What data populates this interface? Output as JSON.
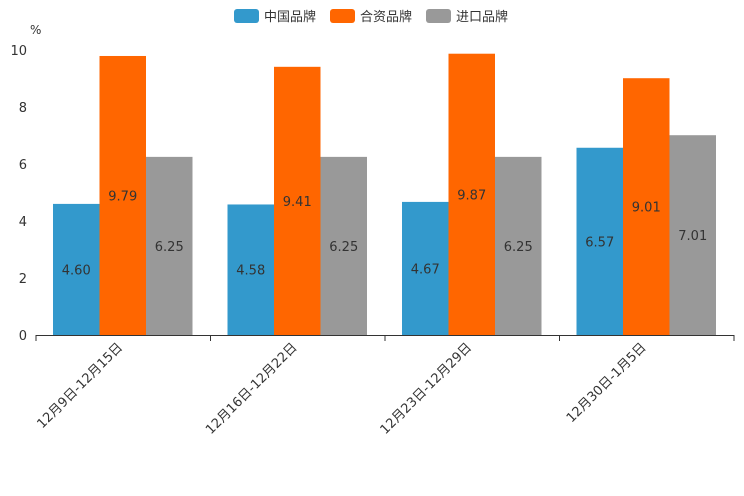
{
  "chart_data": {
    "type": "bar",
    "unit_label": "%",
    "categories": [
      "12月9日-12月15日",
      "12月16日-12月22日",
      "12月23日-12月29日",
      "12月30日-1月5日"
    ],
    "series": [
      {
        "name": "中国品牌",
        "color": "#3399cc",
        "values": [
          4.6,
          4.58,
          4.67,
          6.57
        ],
        "labels": [
          "4.60",
          "4.58",
          "4.67",
          "6.57"
        ]
      },
      {
        "name": "合资品牌",
        "color": "#ff6600",
        "values": [
          9.79,
          9.41,
          9.87,
          9.01
        ],
        "labels": [
          "9.79",
          "9.41",
          "9.87",
          "9.01"
        ]
      },
      {
        "name": "进口品牌",
        "color": "#999999",
        "values": [
          6.25,
          6.25,
          6.25,
          7.01
        ],
        "labels": [
          "6.25",
          "6.25",
          "6.25",
          "7.01"
        ]
      }
    ],
    "ylim": [
      0,
      10
    ],
    "yticks": [
      0,
      2,
      4,
      6,
      8,
      10
    ],
    "legend_position": "top-center",
    "grid": false
  }
}
